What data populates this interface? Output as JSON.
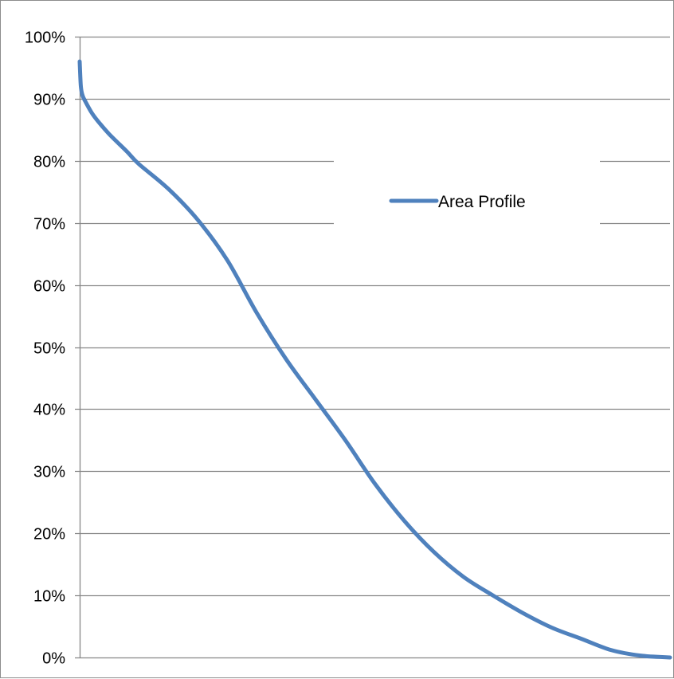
{
  "chart_data": {
    "type": "line",
    "title": "",
    "xlabel": "",
    "ylabel": "",
    "ylim": [
      0,
      1
    ],
    "xlim": [
      0,
      1
    ],
    "x_tick_labels_shown": false,
    "grid": true,
    "grid_axis": "y",
    "legend_placement": "top-right",
    "y_ticks": [
      {
        "value": 0.0,
        "label": "0%"
      },
      {
        "value": 0.1,
        "label": "10%"
      },
      {
        "value": 0.2,
        "label": "20%"
      },
      {
        "value": 0.3,
        "label": "30%"
      },
      {
        "value": 0.4,
        "label": "40%"
      },
      {
        "value": 0.5,
        "label": "50%"
      },
      {
        "value": 0.6,
        "label": "60%"
      },
      {
        "value": 0.7,
        "label": "70%"
      },
      {
        "value": 0.8,
        "label": "80%"
      },
      {
        "value": 0.9,
        "label": "90%"
      },
      {
        "value": 1.0,
        "label": "100%"
      }
    ],
    "series": [
      {
        "name": "Area Profile",
        "color": "#4f81bd",
        "x": [
          0.0,
          0.002,
          0.005,
          0.01,
          0.02,
          0.03,
          0.05,
          0.08,
          0.1,
          0.15,
          0.2,
          0.25,
          0.3,
          0.35,
          0.4,
          0.45,
          0.5,
          0.55,
          0.6,
          0.65,
          0.7,
          0.75,
          0.8,
          0.85,
          0.9,
          0.95,
          1.0
        ],
        "y": [
          0.96,
          0.92,
          0.905,
          0.895,
          0.878,
          0.865,
          0.843,
          0.815,
          0.795,
          0.755,
          0.705,
          0.64,
          0.555,
          0.48,
          0.415,
          0.35,
          0.28,
          0.22,
          0.17,
          0.13,
          0.1,
          0.072,
          0.048,
          0.03,
          0.012,
          0.003,
          0.0
        ]
      }
    ]
  }
}
